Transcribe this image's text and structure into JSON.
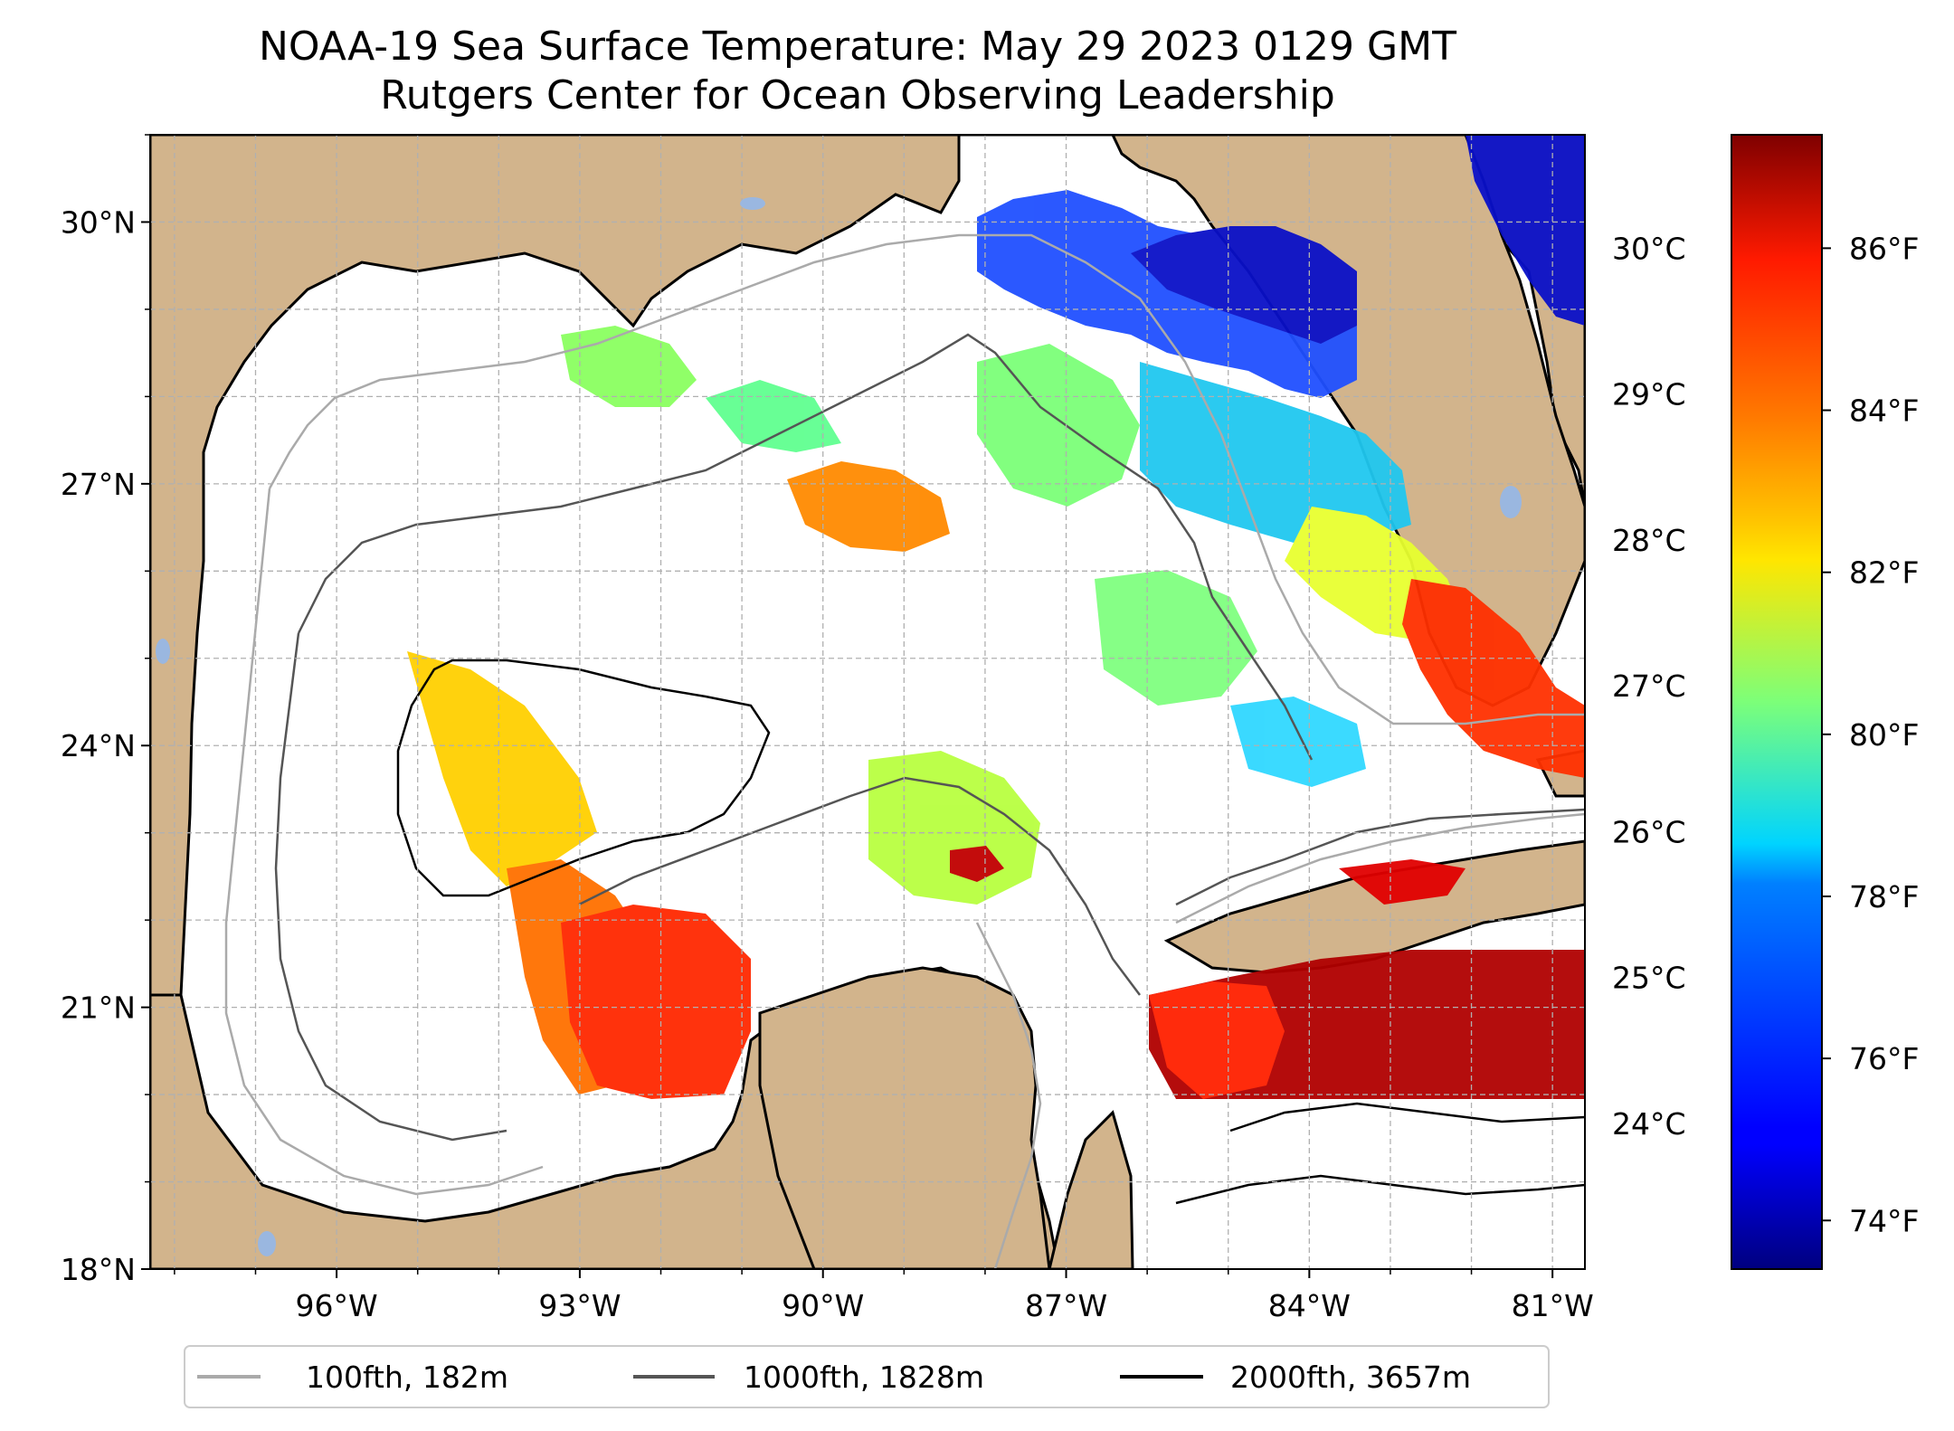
{
  "title": {
    "line1": "NOAA-19 Sea Surface Temperature: May 29 2023 0129 GMT",
    "line2": "Rutgers Center for Ocean Observing Leadership"
  },
  "map": {
    "lon_range": [
      -98.3,
      -80.6
    ],
    "lat_range": [
      18.0,
      31.0
    ],
    "lat_ticks": [
      "30°N",
      "27°N",
      "24°N",
      "21°N",
      "18°N"
    ],
    "lat_tick_values": [
      30,
      27,
      24,
      21,
      18
    ],
    "lon_ticks": [
      "96°W",
      "93°W",
      "90°W",
      "87°W",
      "84°W",
      "81°W"
    ],
    "lon_tick_values": [
      -96,
      -93,
      -90,
      -87,
      -84,
      -81
    ],
    "grid": true,
    "land_color": "#d2b48c",
    "lake_color": "#9ab7e0"
  },
  "colorbar": {
    "colormap": "jet",
    "celsius_ticks": [
      "30°C",
      "29°C",
      "28°C",
      "27°C",
      "26°C",
      "25°C",
      "24°C"
    ],
    "celsius_values": [
      30,
      29,
      28,
      27,
      26,
      25,
      24
    ],
    "fahrenheit_ticks": [
      "86°F",
      "84°F",
      "82°F",
      "80°F",
      "78°F",
      "76°F",
      "74°F"
    ],
    "fahrenheit_values": [
      86,
      84,
      82,
      80,
      78,
      76,
      74
    ],
    "range_f": [
      73.4,
      87.4
    ]
  },
  "legend": {
    "placement": "bottom-center",
    "items": [
      {
        "label": "100fth, 182m",
        "color": "#aaaaaa"
      },
      {
        "label": "1000fth, 1828m",
        "color": "#555555"
      },
      {
        "label": "2000fth, 3657m",
        "color": "#000000"
      }
    ]
  }
}
